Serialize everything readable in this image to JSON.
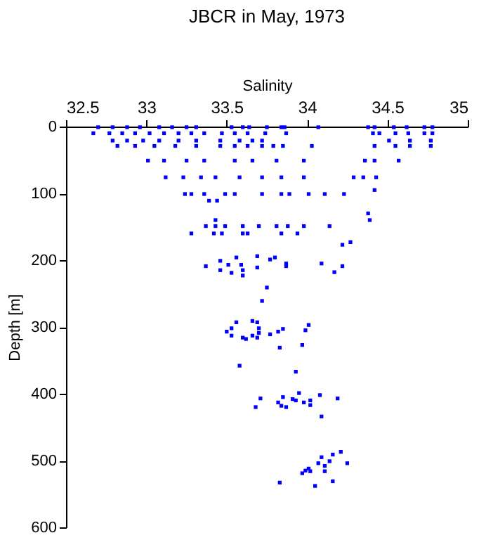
{
  "chart_data": {
    "type": "scatter",
    "title": "JBCR in May, 1973",
    "xlabel": "Salinity",
    "ylabel": "Depth [m]",
    "xlim": [
      32.5,
      35
    ],
    "xticks": [
      32.5,
      33,
      33.5,
      34,
      34.5,
      35
    ],
    "ylim": [
      600,
      0
    ],
    "yticks": [
      0,
      100,
      200,
      300,
      400,
      500,
      600
    ],
    "grid": false,
    "marker": "square",
    "series": [
      {
        "color": "#0000ff",
        "x": [
          32.7,
          32.79,
          32.88,
          32.96,
          33.08,
          33.16,
          33.25,
          33.31,
          33.53,
          33.6,
          33.64,
          33.75,
          33.84,
          33.86,
          34.07,
          34.38,
          34.42,
          34.54,
          34.62,
          34.73,
          34.78,
          32.67,
          32.77,
          32.85,
          32.93,
          33.02,
          33.11,
          33.2,
          33.28,
          33.36,
          33.47,
          33.55,
          33.63,
          33.74,
          33.87,
          34.41,
          34.45,
          34.55,
          34.63,
          34.73,
          34.78,
          32.79,
          32.88,
          32.98,
          33.08,
          33.2,
          33.31,
          33.46,
          33.58,
          33.66,
          33.72,
          34.51,
          34.64,
          34.77,
          32.82,
          32.93,
          33.05,
          33.18,
          33.31,
          33.46,
          33.55,
          33.63,
          33.72,
          33.79,
          33.85,
          34.03,
          34.42,
          34.55,
          34.64,
          34.77,
          33.01,
          33.11,
          33.25,
          33.36,
          33.55,
          33.66,
          33.81,
          33.98,
          34.36,
          34.42,
          34.57,
          33.12,
          33.23,
          33.34,
          33.43,
          33.58,
          33.72,
          33.84,
          33.98,
          34.29,
          34.35,
          34.43,
          33.24,
          33.28,
          33.36,
          33.49,
          33.55,
          33.72,
          33.84,
          33.89,
          34.01,
          34.11,
          34.23,
          34.42,
          33.39,
          33.44,
          34.38,
          34.39,
          33.37,
          33.43,
          33.49,
          33.6,
          33.7,
          33.81,
          33.88,
          33.98,
          34.14,
          33.28,
          33.42,
          33.47,
          33.6,
          33.63,
          33.84,
          33.94,
          33.43,
          34.22,
          34.27,
          33.37,
          33.46,
          33.46,
          33.51,
          33.56,
          33.53,
          33.59,
          33.6,
          33.6,
          33.69,
          33.69,
          33.77,
          33.8,
          33.87,
          33.87,
          34.09,
          34.17,
          34.22,
          33.75,
          33.72,
          33.5,
          33.53,
          33.53,
          33.56,
          33.6,
          33.62,
          33.66,
          33.66,
          33.69,
          33.69,
          33.7,
          33.7,
          33.77,
          33.82,
          33.85,
          33.83,
          33.99,
          34.01,
          33.97,
          33.58,
          33.93,
          33.68,
          33.71,
          33.82,
          33.84,
          33.85,
          33.87,
          33.91,
          33.93,
          33.95,
          33.98,
          34.02,
          34.02,
          34.08,
          34.19,
          34.09,
          34.21,
          34.16,
          34.09,
          34.14,
          34.07,
          34.11,
          34.25,
          34.01,
          33.99,
          34.02,
          33.97,
          34.11,
          33.83,
          34.16,
          34.05
        ],
        "values": [
          1,
          1,
          1,
          1,
          1,
          1,
          1,
          1,
          1,
          1,
          1,
          1,
          1,
          1,
          1,
          1,
          1,
          1,
          1,
          1,
          1,
          10,
          10,
          10,
          10,
          10,
          10,
          10,
          10,
          10,
          10,
          10,
          10,
          10,
          10,
          10,
          10,
          10,
          10,
          10,
          10,
          21,
          21,
          21,
          21,
          21,
          21,
          21,
          21,
          21,
          21,
          21,
          21,
          21,
          29,
          29,
          29,
          29,
          29,
          29,
          29,
          29,
          29,
          29,
          29,
          29,
          29,
          29,
          29,
          29,
          51,
          51,
          51,
          51,
          51,
          51,
          51,
          51,
          51,
          51,
          51,
          76,
          76,
          76,
          76,
          76,
          76,
          76,
          76,
          76,
          76,
          76,
          101,
          101,
          101,
          101,
          101,
          101,
          101,
          101,
          101,
          101,
          101,
          95,
          111,
          111,
          130,
          140,
          149,
          149,
          149,
          149,
          149,
          149,
          149,
          149,
          149,
          160,
          160,
          160,
          160,
          160,
          160,
          160,
          140,
          177,
          173,
          209,
          201,
          215,
          207,
          196,
          219,
          207,
          215,
          223,
          194,
          211,
          199,
          196,
          205,
          209,
          205,
          218,
          209,
          241,
          261,
          307,
          302,
          313,
          293,
          316,
          318,
          291,
          313,
          316,
          293,
          302,
          309,
          311,
          307,
          303,
          331,
          305,
          297,
          327,
          358,
          367,
          420,
          407,
          413,
          418,
          405,
          420,
          408,
          410,
          399,
          413,
          410,
          417,
          402,
          407,
          434,
          487,
          491,
          495,
          501,
          504,
          508,
          504,
          512,
          515,
          516,
          519,
          516,
          533,
          531,
          538
        ]
      }
    ]
  }
}
